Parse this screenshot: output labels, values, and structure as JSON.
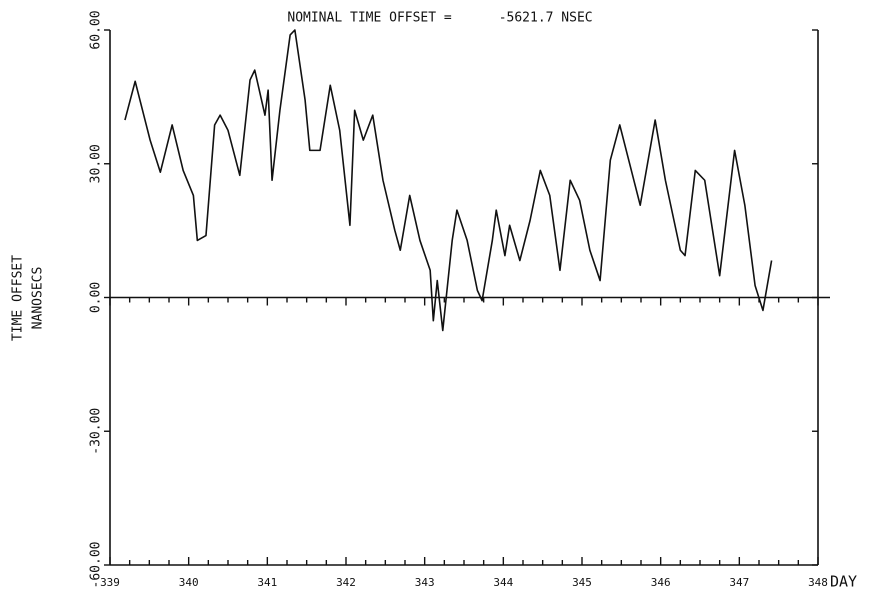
{
  "chart_data": {
    "type": "line",
    "title": "NOMINAL TIME OFFSET =      -5621.7 NSEC",
    "y_label": [
      "TIME OFFSET",
      "NANOSECS"
    ],
    "x_label": "DAY",
    "xlim": [
      339,
      348
    ],
    "xticks": [
      339,
      340,
      341,
      342,
      343,
      344,
      345,
      346,
      347,
      348
    ],
    "ylim": [
      -60,
      60
    ],
    "yticks": [
      {
        "value": 60,
        "label": "60.00"
      },
      {
        "value": 30,
        "label": "30.00"
      },
      {
        "value": 0,
        "label": "0.00"
      },
      {
        "value": -30,
        "label": "-30.00"
      },
      {
        "value": -60,
        "label": "-60.00"
      }
    ],
    "grid": false,
    "series": [
      {
        "name": "TIME OFFSET",
        "color": "#111111",
        "x": [
          339.19,
          339.32,
          339.51,
          339.64,
          339.79,
          339.93,
          340.06,
          340.11,
          340.22,
          340.33,
          340.4,
          340.5,
          340.65,
          340.78,
          340.84,
          340.97,
          341.01,
          341.06,
          341.16,
          341.29,
          341.35,
          341.48,
          341.54,
          341.67,
          341.8,
          341.92,
          342.05,
          342.11,
          342.22,
          342.34,
          342.47,
          342.62,
          342.69,
          342.81,
          342.94,
          343.07,
          343.11,
          343.16,
          343.23,
          343.35,
          343.41,
          343.54,
          343.67,
          343.73,
          343.86,
          343.91,
          344.02,
          344.08,
          344.21,
          344.34,
          344.47,
          344.59,
          344.72,
          344.85,
          344.97,
          345.1,
          345.23,
          345.36,
          345.48,
          345.61,
          345.74,
          345.93,
          346.06,
          346.25,
          346.31,
          346.44,
          346.56,
          346.75,
          346.94,
          347.07,
          347.2,
          347.3,
          347.41
        ],
        "values": [
          39.8,
          48.5,
          35.3,
          28.1,
          38.7,
          28.5,
          22.9,
          12.8,
          13.9,
          38.7,
          40.9,
          37.5,
          27.4,
          48.8,
          51.0,
          40.9,
          46.5,
          26.3,
          42.0,
          58.9,
          60.0,
          44.3,
          33.0,
          33.0,
          47.6,
          37.5,
          16.2,
          42.0,
          35.3,
          40.9,
          26.3,
          15.1,
          10.6,
          22.9,
          12.8,
          6.1,
          -5.2,
          3.8,
          -7.4,
          12.8,
          19.6,
          12.8,
          1.6,
          -0.7,
          12.8,
          19.6,
          9.4,
          16.2,
          8.3,
          17.3,
          28.5,
          22.9,
          6.1,
          26.3,
          21.8,
          10.6,
          3.8,
          30.8,
          38.7,
          29.7,
          20.7,
          39.8,
          26.3,
          10.6,
          9.4,
          28.5,
          26.3,
          4.9,
          33.0,
          20.7,
          2.7,
          -2.9,
          8.3
        ]
      }
    ]
  }
}
